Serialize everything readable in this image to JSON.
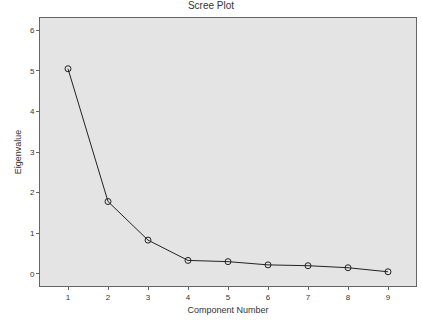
{
  "chart_data": {
    "type": "line",
    "title": "Scree Plot",
    "x_label": "Component Number",
    "y_label": "Eigenvalue",
    "x": [
      1,
      2,
      3,
      4,
      5,
      6,
      7,
      8,
      9
    ],
    "values": [
      5.05,
      1.78,
      0.83,
      0.33,
      0.3,
      0.22,
      0.2,
      0.15,
      0.05
    ],
    "color": "#222222",
    "marker": "circle-open",
    "xlim": [
      0.3,
      9.7
    ],
    "xticks": [
      1,
      2,
      3,
      4,
      5,
      6,
      7,
      8,
      9
    ],
    "ylim": [
      -0.3,
      6.3
    ],
    "yticks": [
      0,
      1,
      2,
      3,
      4,
      5,
      6
    ],
    "grid": false
  }
}
